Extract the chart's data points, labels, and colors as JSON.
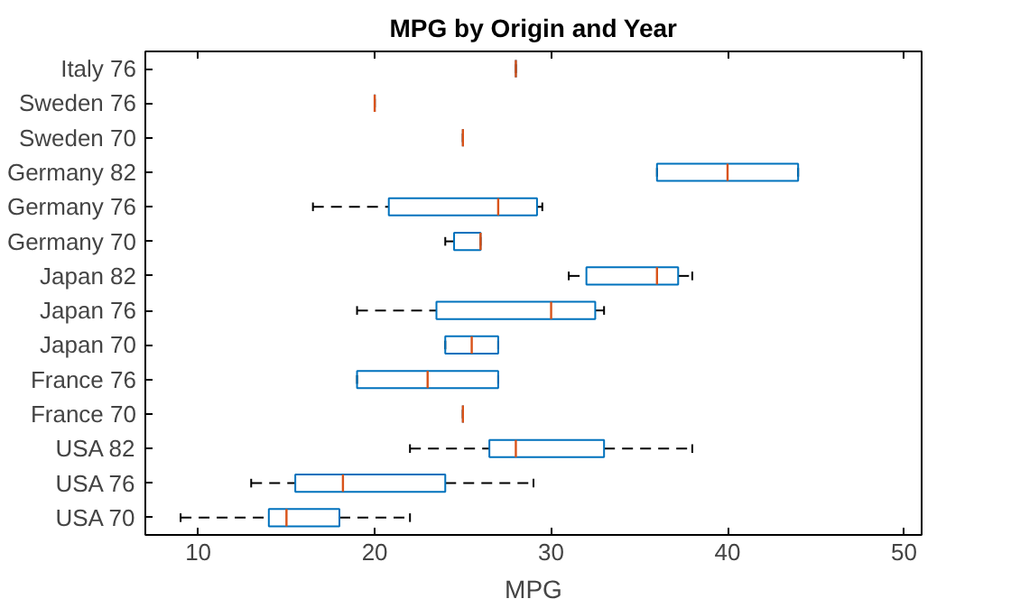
{
  "chart_data": {
    "type": "box",
    "orientation": "horizontal",
    "title": "MPG by Origin and Year",
    "xlabel": "MPG",
    "color": "#0072bd",
    "categories": [
      "Italy 76",
      "Sweden 76",
      "Sweden 70",
      "Germany 82",
      "Germany 76",
      "Germany 70",
      "Japan 82",
      "Japan 76",
      "Japan 70",
      "France 76",
      "France 70",
      "USA 82",
      "USA 76",
      "USA 70"
    ],
    "boxes": [
      {
        "low": 28,
        "q1": 28,
        "median": 28,
        "q3": 28,
        "high": 28
      },
      {
        "low": 20,
        "q1": 20,
        "median": 20,
        "q3": 20,
        "high": 20
      },
      {
        "low": 25,
        "q1": 25,
        "median": 25,
        "q3": 25,
        "high": 25
      },
      {
        "low": 36,
        "q1": 36,
        "median": 40,
        "q3": 44,
        "high": 44
      },
      {
        "low": 16.5,
        "q1": 20.8,
        "median": 27,
        "q3": 29.2,
        "high": 29.5
      },
      {
        "low": 24,
        "q1": 24.5,
        "median": 26,
        "q3": 26,
        "high": 26
      },
      {
        "low": 31,
        "q1": 32,
        "median": 36,
        "q3": 37.2,
        "high": 38
      },
      {
        "low": 19,
        "q1": 23.5,
        "median": 30,
        "q3": 32.5,
        "high": 33
      },
      {
        "low": 24,
        "q1": 24,
        "median": 25.5,
        "q3": 27,
        "high": 27
      },
      {
        "low": 19,
        "q1": 19,
        "median": 23,
        "q3": 27,
        "high": 27
      },
      {
        "low": 25,
        "q1": 25,
        "median": 25,
        "q3": 25,
        "high": 25
      },
      {
        "low": 22,
        "q1": 26.5,
        "median": 28,
        "q3": 33,
        "high": 38
      },
      {
        "low": 13,
        "q1": 15.5,
        "median": 18.2,
        "q3": 24,
        "high": 29
      },
      {
        "low": 9,
        "q1": 14,
        "median": 15,
        "q3": 18,
        "high": 22
      }
    ],
    "xlim": [
      7,
      51
    ],
    "xticks": [
      10,
      20,
      30,
      40,
      50
    ]
  }
}
